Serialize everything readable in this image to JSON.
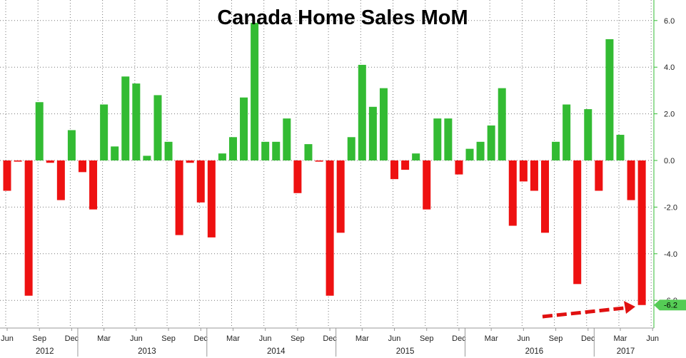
{
  "chart_data": {
    "type": "bar",
    "title": "Canada Home Sales MoM",
    "xlabel": "",
    "ylabel": "",
    "ylim": [
      -7.0,
      6.5
    ],
    "y_ticks": [
      6.0,
      4.0,
      2.0,
      0.0,
      -2.0,
      -4.0,
      -6.0
    ],
    "y_tick_labels": [
      "6.0",
      "4.0",
      "2.0",
      "0.0",
      "-2.0",
      "-4.0",
      "-6.0"
    ],
    "y_axis_position": "right",
    "grid": true,
    "legend": "none",
    "x_tick_labels": [
      "Jun",
      "Sep",
      "Dec",
      "Mar",
      "Jun",
      "Sep",
      "Dec",
      "Mar",
      "Jun",
      "Sep",
      "Dec",
      "Mar",
      "Jun",
      "Sep",
      "Dec",
      "Mar",
      "Jun",
      "Sep",
      "Dec",
      "Mar",
      "Jun"
    ],
    "year_labels": [
      "2012",
      "2013",
      "2014",
      "2015",
      "2016",
      "2017"
    ],
    "categories": [
      "Jun 2012",
      "Jul 2012",
      "Aug 2012",
      "Sep 2012",
      "Oct 2012",
      "Nov 2012",
      "Dec 2012",
      "Jan 2013",
      "Feb 2013",
      "Mar 2013",
      "Apr 2013",
      "May 2013",
      "Jun 2013",
      "Jul 2013",
      "Aug 2013",
      "Sep 2013",
      "Oct 2013",
      "Nov 2013",
      "Dec 2013",
      "Jan 2014",
      "Feb 2014",
      "Mar 2014",
      "Apr 2014",
      "May 2014",
      "Jun 2014",
      "Jul 2014",
      "Aug 2014",
      "Sep 2014",
      "Oct 2014",
      "Nov 2014",
      "Dec 2014",
      "Jan 2015",
      "Feb 2015",
      "Mar 2015",
      "Apr 2015",
      "May 2015",
      "Jun 2015",
      "Jul 2015",
      "Aug 2015",
      "Sep 2015",
      "Oct 2015",
      "Nov 2015",
      "Dec 2015",
      "Jan 2016",
      "Feb 2016",
      "Mar 2016",
      "Apr 2016",
      "May 2016",
      "Jun 2016",
      "Jul 2016",
      "Aug 2016",
      "Sep 2016",
      "Oct 2016",
      "Nov 2016",
      "Dec 2016",
      "Jan 2017",
      "Feb 2017",
      "Mar 2017",
      "Apr 2017",
      "May 2017"
    ],
    "values": [
      -1.3,
      -0.05,
      -5.8,
      2.5,
      -0.1,
      -1.7,
      1.3,
      -0.5,
      -2.1,
      2.4,
      0.6,
      3.6,
      3.3,
      0.2,
      2.8,
      0.8,
      -3.2,
      -0.1,
      -1.8,
      -3.3,
      0.3,
      1.0,
      2.7,
      5.9,
      0.8,
      0.8,
      1.8,
      -1.4,
      0.7,
      -0.05,
      -5.8,
      -3.1,
      1.0,
      4.1,
      2.3,
      3.1,
      -0.8,
      -0.4,
      0.3,
      -2.1,
      1.8,
      1.8,
      -0.6,
      0.5,
      0.8,
      1.5,
      3.1,
      -2.8,
      -0.9,
      -1.3,
      -3.1,
      0.8,
      2.4,
      -5.3,
      2.2,
      -1.3,
      5.2,
      1.1,
      -1.7,
      -6.2
    ],
    "last_value_label": "-6.2",
    "colors": {
      "positive": "#33bb33",
      "negative": "#ee1111",
      "last_label_bg": "#55cc55",
      "annotation_arrow": "#e01010"
    }
  }
}
